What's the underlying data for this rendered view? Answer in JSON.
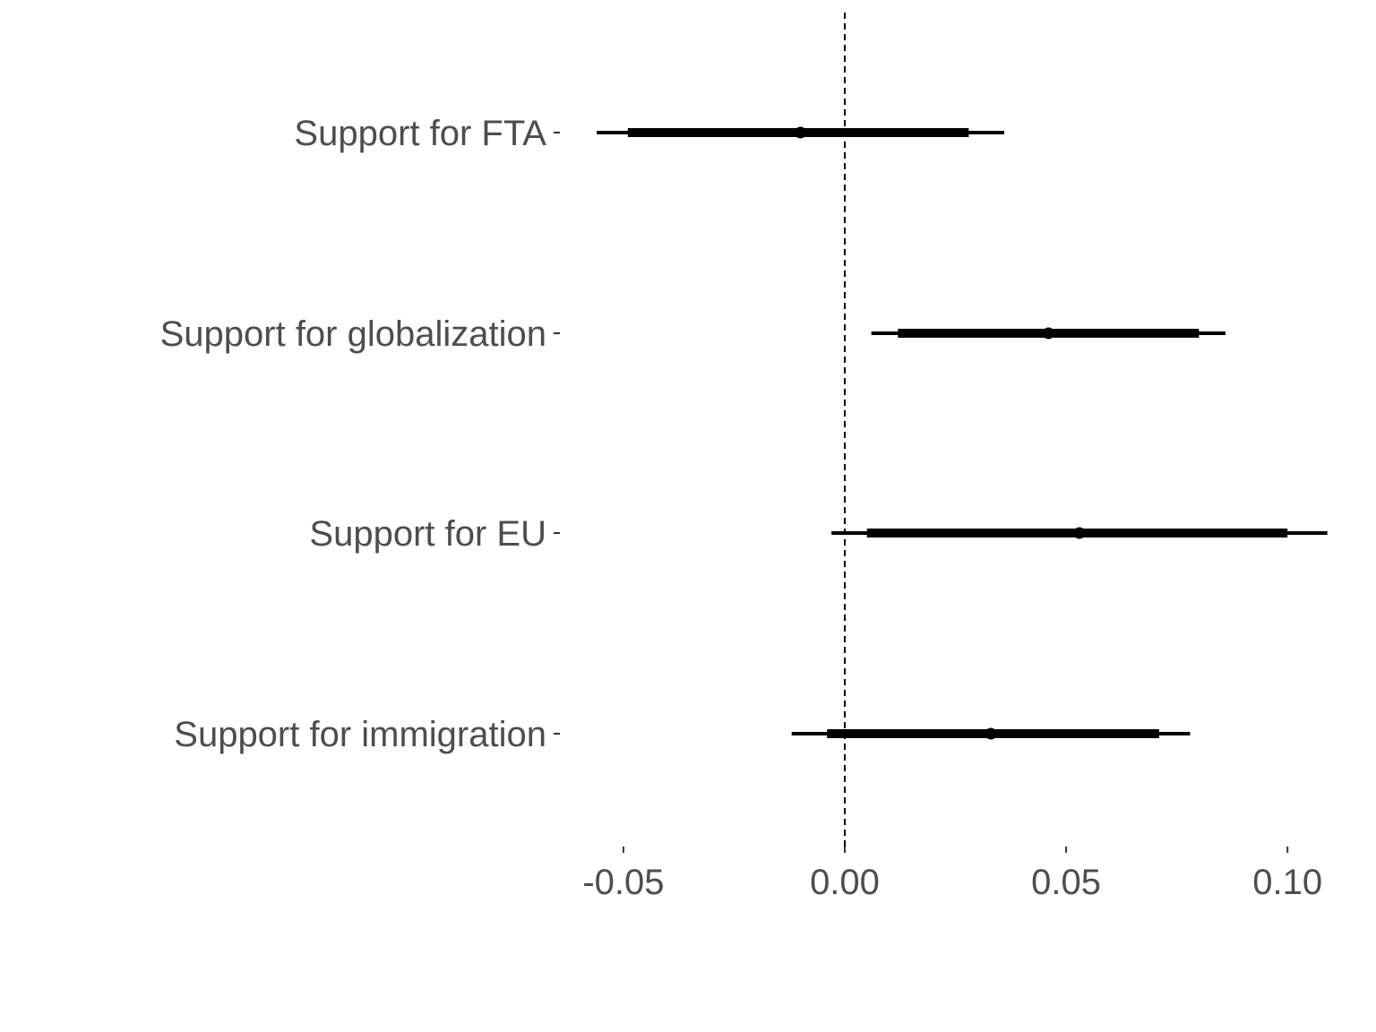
{
  "chart_data": {
    "type": "coefficient_plot",
    "title": "",
    "xlabel": "",
    "ylabel": "",
    "xlim": [
      -0.06,
      0.109
    ],
    "xticks": [
      -0.05,
      0.0,
      0.05,
      0.1
    ],
    "xtick_labels": [
      "-0.05",
      "0.00",
      "0.05",
      "0.10"
    ],
    "reference_line": {
      "x": 0,
      "style": "dashed"
    },
    "grid": false,
    "legend": "none",
    "categories": [
      "Support for FTA",
      "Support for globalization",
      "Support for EU",
      "Support for immigration"
    ],
    "series": [
      {
        "estimates": [
          -0.01,
          0.046,
          0.053,
          0.033
        ],
        "ci_inner": [
          [
            -0.049,
            0.028
          ],
          [
            0.012,
            0.08
          ],
          [
            0.005,
            0.1
          ],
          [
            -0.004,
            0.071
          ]
        ],
        "ci_outer": [
          [
            -0.056,
            0.036
          ],
          [
            0.006,
            0.086
          ],
          [
            -0.003,
            0.109
          ],
          [
            -0.012,
            0.078
          ]
        ]
      }
    ],
    "colors": {
      "marks": "#000000",
      "text": "#4d4d4d",
      "ticks": "#333333"
    }
  }
}
